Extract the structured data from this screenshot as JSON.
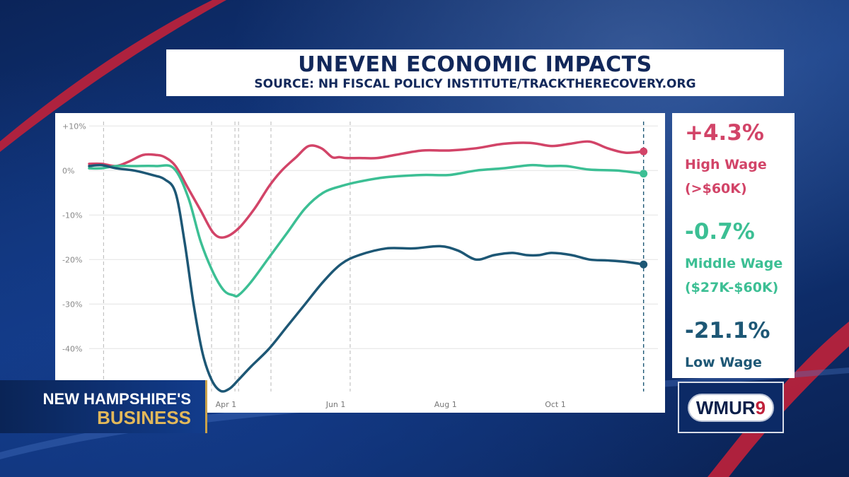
{
  "title": "UNEVEN ECONOMIC IMPACTS",
  "subtitle": "SOURCE: NH FISCAL POLICY INSTITUTE/TRACKTHERECOVERY.ORG",
  "legend": [
    {
      "value": "+4.3%",
      "label1": "High Wage",
      "label2": "(>$60K)",
      "color": "#d24468"
    },
    {
      "value": "-0.7%",
      "label1": "Middle Wage",
      "label2": "($27K-$60K)",
      "color": "#3cbf94"
    },
    {
      "value": "-21.1%",
      "label1": "Low Wage",
      "label2": "",
      "color": "#1d5775"
    }
  ],
  "lower_third": {
    "line1": "NEW HAMPSHIRE'S",
    "line2": "BUSINESS"
  },
  "logo": {
    "text": "WMUR",
    "channel": "9"
  },
  "chart_data": {
    "type": "line",
    "x_tick_labels": [
      "Apr 1",
      "Jun 1",
      "Aug 1",
      "Oct 1"
    ],
    "x_tick_days": [
      91,
      152,
      213,
      274
    ],
    "y_tick_labels": [
      "+10%",
      "0%",
      "-10%",
      "-20%",
      "-30%",
      "-40%"
    ],
    "y_tick_values": [
      10,
      0,
      -10,
      -20,
      -30,
      -40
    ],
    "ylim": [
      -49,
      11
    ],
    "xlim": [
      15,
      331
    ],
    "grid": true,
    "series": [
      {
        "name": "High Wage (>$60K)",
        "color": "#d24468",
        "x": [
          15,
          22,
          30,
          37,
          45,
          52,
          57,
          63,
          70,
          77,
          84,
          90,
          98,
          107,
          115,
          122,
          130,
          137,
          144,
          150,
          154,
          158,
          165,
          175,
          185,
          200,
          215,
          230,
          245,
          260,
          272,
          282,
          293,
          303,
          313,
          323
        ],
        "y": [
          1.5,
          1.5,
          1,
          2,
          3.5,
          3.5,
          3,
          1,
          -4,
          -9,
          -14,
          -15,
          -13,
          -8.5,
          -3.5,
          0,
          3,
          5.5,
          5,
          3,
          3,
          2.8,
          2.8,
          2.8,
          3.5,
          4.5,
          4.5,
          5,
          6,
          6.2,
          5.5,
          6,
          6.5,
          5,
          4,
          4.3
        ]
      },
      {
        "name": "Middle Wage ($27K-$60K)",
        "color": "#3cbf94",
        "x": [
          15,
          22,
          30,
          40,
          52,
          62,
          70,
          77,
          84,
          90,
          95,
          98,
          105,
          115,
          125,
          135,
          145,
          155,
          165,
          180,
          200,
          215,
          230,
          245,
          260,
          270,
          280,
          293,
          308,
          323
        ],
        "y": [
          0.5,
          0.5,
          1,
          1,
          1,
          0.5,
          -6,
          -16,
          -23,
          -27,
          -28,
          -28,
          -25,
          -19.5,
          -14,
          -8.5,
          -5,
          -3.5,
          -2.5,
          -1.5,
          -1,
          -1,
          0,
          0.5,
          1.2,
          1,
          1,
          0.2,
          0,
          -0.7
        ]
      },
      {
        "name": "Low Wage",
        "color": "#1d5775",
        "x": [
          15,
          22,
          30,
          40,
          50,
          57,
          63,
          68,
          73,
          78,
          83,
          88,
          93,
          98,
          105,
          115,
          125,
          135,
          145,
          155,
          165,
          180,
          195,
          210,
          220,
          230,
          240,
          250,
          258,
          265,
          272,
          283,
          293,
          303,
          313,
          323
        ],
        "y": [
          1,
          1.2,
          0.5,
          0,
          -1,
          -2,
          -5,
          -16,
          -30,
          -41,
          -47,
          -49.5,
          -49,
          -47,
          -44,
          -40,
          -35,
          -30,
          -25,
          -21,
          -19,
          -17.5,
          -17.5,
          -17,
          -18,
          -20,
          -19,
          -18.5,
          -19,
          -19,
          -18.5,
          -19,
          -20,
          -20.2,
          -20.5,
          -21.1
        ]
      }
    ],
    "vertical_markers": [
      23,
      83,
      96,
      98,
      116,
      160
    ]
  }
}
